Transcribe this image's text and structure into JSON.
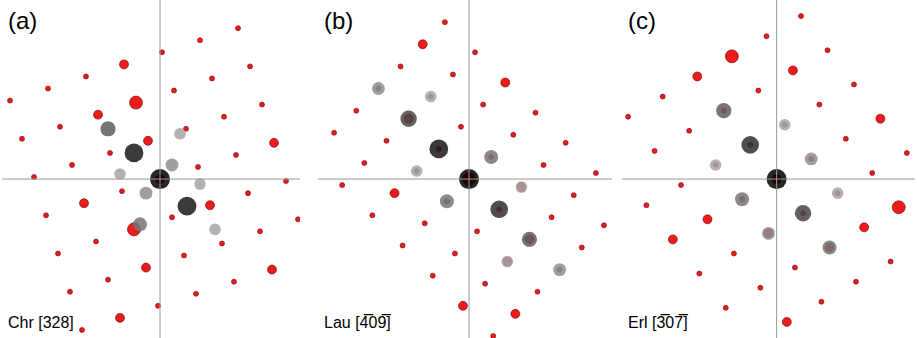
{
  "chart_data": [
    {
      "type": "scatter",
      "label": "(a)",
      "title": "Chr [328]",
      "tick_labels": false,
      "xlim": [
        -158,
        140
      ],
      "ylim": [
        -158,
        178
      ],
      "series": [
        {
          "color": "#ea1c1c",
          "marker": "circle",
          "points": [
            [
              -78,
              -150,
              1
            ],
            [
              -40,
              -138,
              2
            ],
            [
              -2,
              -126,
              1
            ],
            [
              36,
              -114,
              1
            ],
            [
              74,
              -102,
              1
            ],
            [
              112,
              -90,
              2
            ],
            [
              -90,
              -112,
              1
            ],
            [
              -52,
              -100,
              1
            ],
            [
              -14,
              -88,
              2
            ],
            [
              24,
              -76,
              1
            ],
            [
              62,
              -64,
              1
            ],
            [
              100,
              -52,
              1
            ],
            [
              138,
              -40,
              1
            ],
            [
              -102,
              -74,
              1
            ],
            [
              -64,
              -62,
              1
            ],
            [
              -26,
              -50,
              3
            ],
            [
              12,
              -38,
              1
            ],
            [
              50,
              -26,
              2
            ],
            [
              88,
              -14,
              1
            ],
            [
              126,
              -2,
              1
            ],
            [
              -114,
              -36,
              1
            ],
            [
              -76,
              -24,
              2
            ],
            [
              -38,
              -12,
              1
            ],
            [
              0,
              0,
              2
            ],
            [
              38,
              12,
              1
            ],
            [
              76,
              24,
              1
            ],
            [
              114,
              36,
              2
            ],
            [
              -126,
              2,
              1
            ],
            [
              -88,
              14,
              1
            ],
            [
              -50,
              26,
              1
            ],
            [
              -12,
              38,
              2
            ],
            [
              26,
              50,
              1
            ],
            [
              64,
              62,
              1
            ],
            [
              102,
              74,
              1
            ],
            [
              -138,
              40,
              1
            ],
            [
              -100,
              52,
              1
            ],
            [
              -62,
              64,
              2
            ],
            [
              -24,
              76,
              3
            ],
            [
              14,
              88,
              1
            ],
            [
              52,
              100,
              1
            ],
            [
              90,
              112,
              1
            ],
            [
              -150,
              78,
              1
            ],
            [
              -112,
              90,
              1
            ],
            [
              -74,
              102,
              1
            ],
            [
              -36,
              114,
              2
            ],
            [
              2,
              126,
              1
            ],
            [
              40,
              138,
              1
            ],
            [
              78,
              150,
              1
            ]
          ]
        },
        {
          "color": "#000000",
          "marker": "circle",
          "points": [
            [
              0,
              0,
              1
            ],
            [
              -26,
              26,
              0.9
            ],
            [
              27,
              -27,
              0.9
            ],
            [
              -52,
              50,
              0.6
            ],
            [
              -14,
              -14,
              0.4
            ],
            [
              12,
              14,
              0.4
            ],
            [
              -40,
              5,
              0.3
            ],
            [
              40,
              -5,
              0.3
            ],
            [
              -20,
              -45,
              0.5
            ],
            [
              20,
              45,
              0.3
            ],
            [
              55,
              -50,
              0.3
            ]
          ]
        }
      ]
    },
    {
      "type": "scatter",
      "label": "(b)",
      "title": "Lau [4̅09̅]",
      "tick_labels": false,
      "xlim": [
        -150,
        142
      ],
      "ylim": [
        -158,
        178
      ],
      "series": [
        {
          "color": "#ea1c1c",
          "marker": "circle",
          "points": [
            [
              -126,
              -6,
              1
            ],
            [
              -96,
              -36,
              1
            ],
            [
              -66,
              -66,
              1
            ],
            [
              -36,
              -96,
              1
            ],
            [
              -6,
              -126,
              2
            ],
            [
              24,
              -156,
              1
            ],
            [
              -134,
              46,
              1
            ],
            [
              -104,
              16,
              1
            ],
            [
              -74,
              -14,
              2
            ],
            [
              -44,
              -44,
              1
            ],
            [
              -14,
              -74,
              1
            ],
            [
              16,
              -104,
              1
            ],
            [
              46,
              -134,
              2
            ],
            [
              -112,
              68,
              1
            ],
            [
              -82,
              38,
              1
            ],
            [
              -52,
              8,
              1
            ],
            [
              -22,
              -22,
              1
            ],
            [
              8,
              -52,
              1
            ],
            [
              38,
              -82,
              2
            ],
            [
              68,
              -112,
              1
            ],
            [
              -90,
              90,
              1
            ],
            [
              -60,
              60,
              2
            ],
            [
              -30,
              30,
              1
            ],
            [
              0,
              0,
              3
            ],
            [
              30,
              -30,
              1
            ],
            [
              60,
              -60,
              2
            ],
            [
              90,
              -90,
              1
            ],
            [
              -68,
              112,
              1
            ],
            [
              -38,
              82,
              1
            ],
            [
              -8,
              52,
              1
            ],
            [
              22,
              22,
              1
            ],
            [
              52,
              -8,
              2
            ],
            [
              82,
              -38,
              1
            ],
            [
              112,
              -68,
              1
            ],
            [
              -46,
              134,
              2
            ],
            [
              -16,
              104,
              1
            ],
            [
              14,
              74,
              1
            ],
            [
              44,
              44,
              1
            ],
            [
              74,
              14,
              1
            ],
            [
              104,
              -16,
              1
            ],
            [
              134,
              -46,
              1
            ],
            [
              -24,
              156,
              1
            ],
            [
              6,
              126,
              1
            ],
            [
              36,
              96,
              2
            ],
            [
              66,
              66,
              1
            ],
            [
              96,
              36,
              1
            ],
            [
              126,
              6,
              1
            ]
          ]
        },
        {
          "color": "#000000",
          "marker": "circle",
          "points": [
            [
              0,
              0,
              1
            ],
            [
              -30,
              30,
              0.9
            ],
            [
              30,
              -30,
              0.8
            ],
            [
              -60,
              60,
              0.7
            ],
            [
              60,
              -60,
              0.6
            ],
            [
              -90,
              90,
              0.4
            ],
            [
              90,
              -90,
              0.4
            ],
            [
              22,
              22,
              0.5
            ],
            [
              -22,
              -22,
              0.5
            ],
            [
              52,
              -8,
              0.3
            ],
            [
              -52,
              8,
              0.3
            ],
            [
              -38,
              82,
              0.3
            ],
            [
              38,
              -82,
              0.3
            ]
          ]
        }
      ]
    },
    {
      "type": "scatter",
      "label": "(c)",
      "title": "Erl [3̅07̅]",
      "tick_labels": false,
      "xlim": [
        -152,
        136
      ],
      "ylim": [
        -158,
        178
      ],
      "series": [
        {
          "color": "#ea1c1c",
          "marker": "circle",
          "points": [
            [
              -128,
              -26,
              1
            ],
            [
              -102,
              -60,
              2
            ],
            [
              -76,
              -94,
              1
            ],
            [
              -50,
              -128,
              1
            ],
            [
              -146,
              62,
              1
            ],
            [
              -120,
              28,
              1
            ],
            [
              -94,
              -6,
              1
            ],
            [
              -68,
              -40,
              2
            ],
            [
              -42,
              -74,
              1
            ],
            [
              -16,
              -108,
              1
            ],
            [
              10,
              -142,
              2
            ],
            [
              -112,
              82,
              1
            ],
            [
              -86,
              48,
              1
            ],
            [
              -60,
              14,
              1
            ],
            [
              -34,
              -20,
              1
            ],
            [
              -8,
              -54,
              2
            ],
            [
              18,
              -88,
              1
            ],
            [
              44,
              -122,
              1
            ],
            [
              -78,
              102,
              2
            ],
            [
              -52,
              68,
              1
            ],
            [
              -26,
              34,
              1
            ],
            [
              0,
              0,
              2
            ],
            [
              26,
              -34,
              1
            ],
            [
              52,
              -68,
              2
            ],
            [
              78,
              -102,
              1
            ],
            [
              -44,
              122,
              3
            ],
            [
              -18,
              88,
              1
            ],
            [
              8,
              54,
              1
            ],
            [
              34,
              20,
              1
            ],
            [
              60,
              -14,
              1
            ],
            [
              86,
              -48,
              2
            ],
            [
              112,
              -82,
              1
            ],
            [
              -10,
              142,
              1
            ],
            [
              16,
              108,
              2
            ],
            [
              42,
              74,
              1
            ],
            [
              68,
              40,
              1
            ],
            [
              94,
              6,
              1
            ],
            [
              120,
              -28,
              3
            ],
            [
              24,
              162,
              1
            ],
            [
              50,
              128,
              1
            ],
            [
              76,
              94,
              1
            ],
            [
              102,
              60,
              2
            ],
            [
              128,
              26,
              1
            ]
          ]
        },
        {
          "color": "#000000",
          "marker": "circle",
          "points": [
            [
              0,
              0,
              1
            ],
            [
              -26,
              34,
              0.8
            ],
            [
              26,
              -34,
              0.7
            ],
            [
              -52,
              68,
              0.6
            ],
            [
              52,
              -68,
              0.5
            ],
            [
              34,
              20,
              0.4
            ],
            [
              -34,
              -20,
              0.5
            ],
            [
              8,
              54,
              0.3
            ],
            [
              -8,
              -54,
              0.4
            ],
            [
              60,
              -14,
              0.3
            ],
            [
              -60,
              14,
              0.3
            ]
          ]
        }
      ]
    }
  ]
}
